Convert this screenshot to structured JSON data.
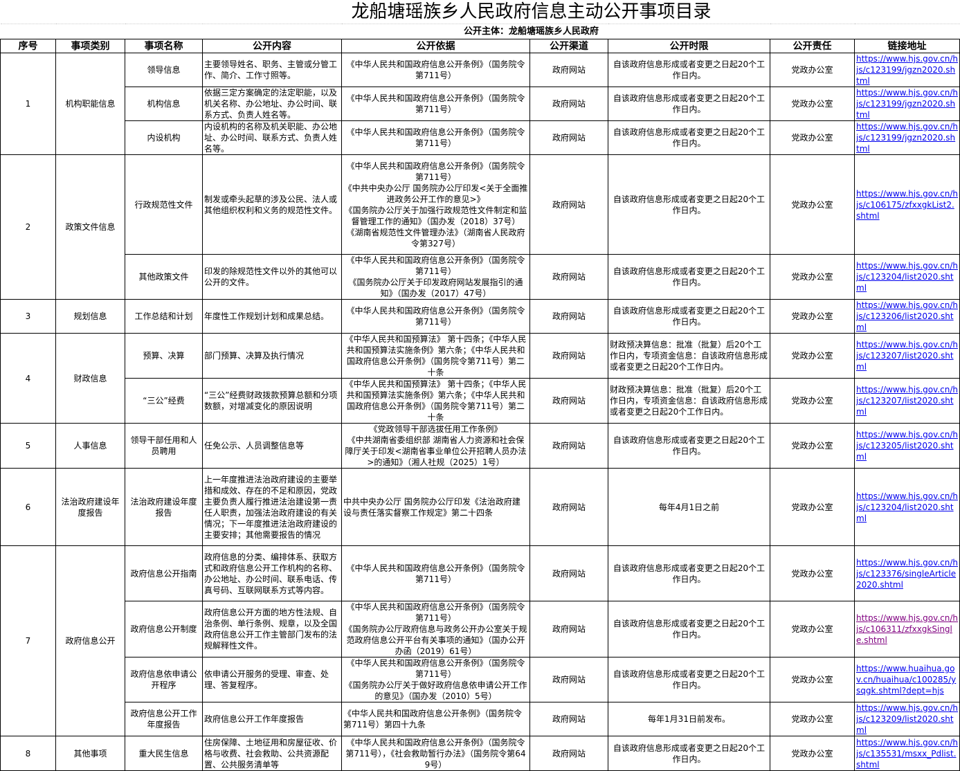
{
  "title": "龙船塘瑶族乡人民政府信息主动公开事项目录",
  "subtitle": "公开主体：龙船塘瑶族乡人民政府",
  "headers": [
    "序号",
    "事项类别",
    "事项名称",
    "公开内容",
    "公开依据",
    "公开渠道",
    "公开时限",
    "公开责任",
    "链接地址"
  ],
  "colors": {
    "link": "#0000ee",
    "visited_link": "#800080"
  },
  "groups": [
    {
      "seq": "1",
      "category": "机构职能信息",
      "items": [
        {
          "name": "领导信息",
          "content": "主要领导姓名、职务、主管或分管工作、简介、工作寸照等。",
          "basis": "《中华人民共和国政府信息公开条例》（国务院令第711号）",
          "channel": "政府网站",
          "deadline": "自该政府信息形成或者变更之日起20个工作日内。",
          "responsible": "党政办公室",
          "link": "https://www.hjs.gov.cn/hjs/c123199/jgzn2020.shtml"
        },
        {
          "name": "机构信息",
          "content": "依据三定方案确定的法定职能，以及机关名称、办公地址、办公时间、联系方式、负责人姓名等。",
          "basis": "《中华人民共和国政府信息公开条例》（国务院令第711号）",
          "channel": "政府网站",
          "deadline": "自该政府信息形成或者变更之日起20个工作日内。",
          "responsible": "党政办公室",
          "link": "https://www.hjs.gov.cn/hjs/c123199/jgzn2020.shtml"
        },
        {
          "name": "内设机构",
          "content": "内设机构的名称及机关职能、办公地址、办公时间、联系方式、负责人姓名等。",
          "basis": "《中华人民共和国政府信息公开条例》（国务院令第711号）",
          "channel": "政府网站",
          "deadline": "自该政府信息形成或者变更之日起20个工作日内。",
          "responsible": "党政办公室",
          "link": "https://www.hjs.gov.cn/hjs/c123199/jgzn2020.shtml"
        }
      ]
    },
    {
      "seq": "2",
      "category": "政策文件信息",
      "items": [
        {
          "name": "行政规范性文件",
          "content": "制发或牵头起草的涉及公民、法人或其他组织权利和义务的规范性文件。",
          "basis": "《中华人民共和国政府信息公开条例》（国务院令第711号）\n《中共中央办公厅 国务院办公厅印发<关于全面推进政务公开工作的意见>》\n《国务院办公厅关于加强行政规范性文件制定和监督管理工作的通知》（国办发（2018）37号）\n《湖南省规范性文件管理办法》（湖南省人民政府令第327号）",
          "channel": "政府网站",
          "deadline": "自该政府信息形成或者变更之日起20个工作日内。",
          "responsible": "党政办公室",
          "link": "https://www.hjs.gov.cn/hjs/c106175/zfxxgkList2.shtml"
        },
        {
          "name": "其他政策文件",
          "content": "印发的除规范性文件以外的其他可以公开的文件。",
          "basis": "《中华人民共和国政府信息公开条例》（国务院令第711号）\n《国务院办公厅关于印发政府网站发展指引的通知》（国办发（2017）47号）",
          "channel": "政府网站",
          "deadline": "自该政府信息形成或者变更之日起20个工作日内。",
          "responsible": "党政办公室",
          "link": "https://www.hjs.gov.cn/hjs/c123204/list2020.shtml"
        }
      ]
    },
    {
      "seq": "3",
      "category": "规划信息",
      "items": [
        {
          "name": "工作总结和计划",
          "content": "年度性工作规划计划和成果总结。",
          "basis": "《中华人民共和国政府信息公开条例》（国务院令第711号）",
          "channel": "政府网站",
          "deadline": "自该政府信息形成或者变更之日起20个工作日内。",
          "responsible": "党政办公室",
          "link": "https://www.hjs.gov.cn/hjs/c123206/list2020.shtml"
        }
      ]
    },
    {
      "seq": "4",
      "category": "财政信息",
      "items": [
        {
          "name": "预算、决算",
          "content": "部门预算、决算及执行情况",
          "basis": "《中华人民共和国预算法》 第十四条；《中华人民共和国预算法实施条例》第六条；《中华人民共和国政府信息公开条例》（国务院令第711号）第二十条",
          "channel": "政府网站",
          "deadline": "财政预决算信息：批准（批复）后20个工作日内，专项资金信息：自该政府信息形成或者变更之日起20个工作日内。",
          "responsible": "党政办公室",
          "link": "https://www.hjs.gov.cn/hjs/c123207/list2020.shtml"
        },
        {
          "name": "“三公”经费",
          "content": "“三公”经费财政拨款预算总额和分项数额，对增减变化的原因说明",
          "basis": "《中华人民共和国预算法》 第十四条；《中华人民共和国预算法实施条例》第六条；《中华人民共和国政府信息公开条例》（国务院令第711号）第二十条",
          "channel": "政府网站",
          "deadline": "财政预决算信息：批准（批复）后20个工作日内，专项资金信息：自该政府信息形成或者变更之日起20个工作日内。",
          "responsible": "党政办公室",
          "link": "https://www.hjs.gov.cn/hjs/c123207/list2020.shtml"
        }
      ]
    },
    {
      "seq": "5",
      "category": "人事信息",
      "items": [
        {
          "name": "领导干部任用和人员聘用",
          "content": "任免公示、人员调整信息等",
          "basis": "《党政领导干部选拔任用工作条例》\n《中共湖南省委组织部 湖南省人力资源和社会保障厅关于印发<湖南省事业单位公开招聘人员办法>的通知》（湘人社规（2025）1号）",
          "channel": "政府网站",
          "deadline": "自该政府信息形成或者变更之日起20个工作日内。",
          "responsible": "党政办公室",
          "link": "https://www.hjs.gov.cn/hjs/c123205/list2020.shtml"
        }
      ]
    },
    {
      "seq": "6",
      "category": "法治政府建设年度报告",
      "items": [
        {
          "name": "法治政府建设年度报告",
          "content": "上一年度推进法治政府建设的主要举措和成效、存在的不足和原因，党政主要负责人履行推进法治建设第一责任人职责，加强法治政府建设的有关情况；下一年度推进法治政府建设的主要安排；其他需要报告的情况",
          "basis": "中共中央办公厅 国务院办公厅印发《法治政府建设与责任落实督察工作规定》第二十四条",
          "basis_left": true,
          "channel": "政府网站",
          "deadline": "每年4月1日之前",
          "responsible": "党政办公室",
          "link": "https://www.hjs.gov.cn/hjs/c123204/list2020.shtml"
        }
      ]
    },
    {
      "seq": "7",
      "category": "政府信息公开",
      "items": [
        {
          "name": "政府信息公开指南",
          "content": "政府信息的分类、编排体系、获取方式和政府信息公开工作机构的名称、办公地址、办公时间、联系电话、传真号码、互联网联系方式等内容。",
          "basis": "《中华人民共和国政府信息公开条例》（国务院令第711号）",
          "channel": "政府网站",
          "deadline": "自该政府信息形成或者变更之日起20个工作日内。",
          "responsible": "党政办公室",
          "link": "https://www.hjs.gov.cn/hjs/c123376/singleArticle2020.shtml"
        },
        {
          "name": "政府信息公开制度",
          "content": "政府信息公开方面的地方性法规、自治条例、单行条例、规章，以及全国政府信息公开工作主管部门发布的法规解释性文件。",
          "basis": "《中华人民共和国政府信息公开条例》（国务院令第711号）\n《国务院办公厅政府信息与政务公开办公室关于规范政府信息公开平台有关事项的通知》（国办公开办函（2019）61号）",
          "channel": "政府网站",
          "deadline": "自该政府信息形成或者变更之日起20个工作日内。",
          "responsible": "党政办公室",
          "link": "https://www.hjs.gov.cn/hjs/c106311/zfxxgkSingle.shtml",
          "visited": true
        },
        {
          "name": "政府信息依申请公开程序",
          "content": "依申请公开服务的受理、审查、处理、答复程序。",
          "basis": "《中华人民共和国政府信息公开条例》（国务院令第711号）\n《国务院办公厅关于做好政府信息依申请公开工作的意见》（国办发（2010）5号）",
          "channel": "政府网站",
          "deadline": "自该政府信息形成或者变更之日起20个工作日内。",
          "responsible": "党政办公室",
          "link": "https://www.huaihua.gov.cn/huaihua/c100285/ysqgk.shtml?dept=hjs"
        },
        {
          "name": "政府信息公开工作年度报告",
          "content": "政府信息公开工作年度报告",
          "basis": "《中华人民共和国政府信息公开条例》（国务院令第711号）第四十九条",
          "basis_left": true,
          "channel": "政府网站",
          "deadline": "每年1月31日前发布。",
          "responsible": "党政办公室",
          "link": "https://www.hjs.gov.cn/hjs/c123209/list2020.shtml"
        }
      ]
    },
    {
      "seq": "8",
      "category": "其他事项",
      "items": [
        {
          "name": "重大民生信息",
          "content": "住房保障、土地征用和房屋征收、价格与收费、社会救助、公共资源配置、公共服务清单等",
          "basis": "《中华人民共和国政府信息公开条例》（国务院令第711号），《社会救助暂行办法》（国务院令第649号）",
          "channel": "政府网站",
          "deadline": "自该政府信息形成或者变更之日起20个工作日内。",
          "responsible": "党政办公室",
          "link": "https://www.hjs.gov.cn/hjs/c135531/msxx_Pdlist.shtml"
        }
      ]
    }
  ]
}
